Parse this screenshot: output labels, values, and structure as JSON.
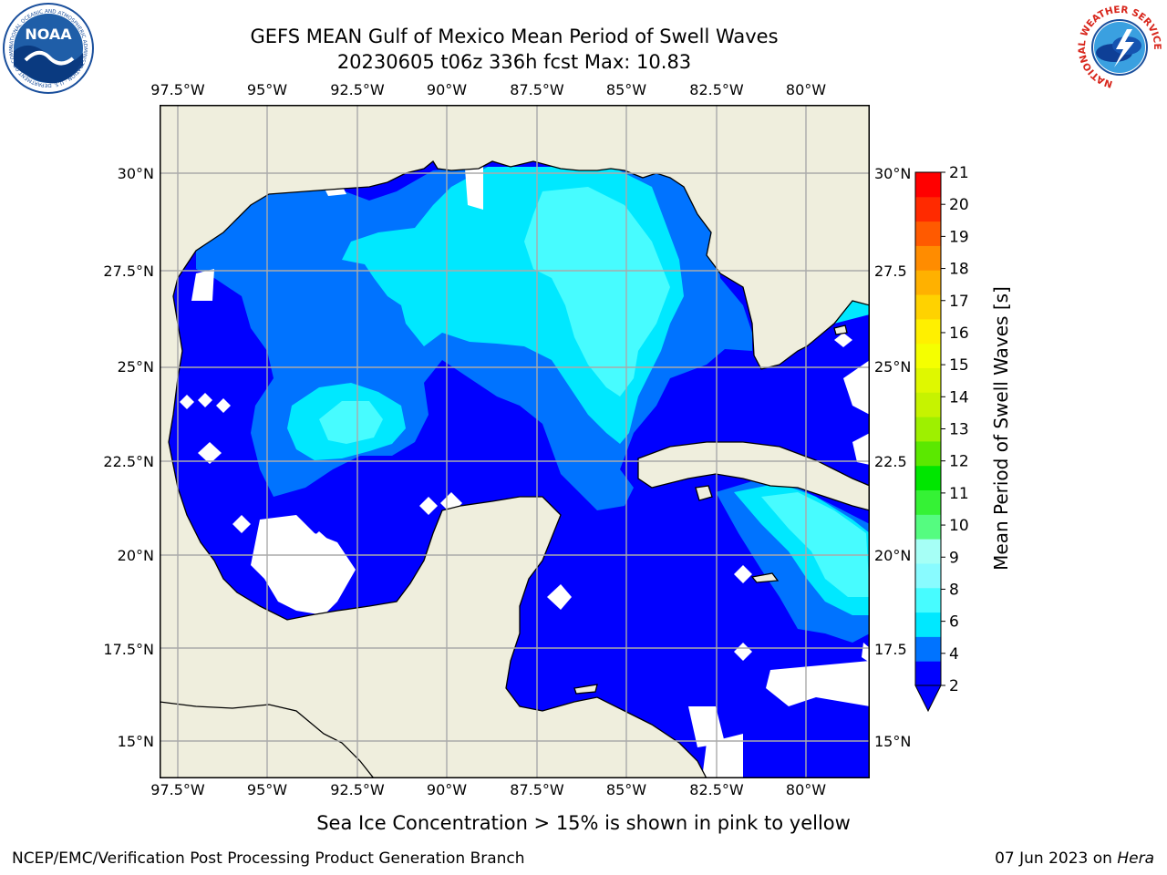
{
  "header": {
    "title_line1": "GEFS MEAN Gulf of Mexico Mean Period of Swell Waves",
    "title_line2": "20230605 t06z 336h fcst   Max: 10.83"
  },
  "logos": {
    "noaa": "NOAA",
    "noaa_ring": "NATIONAL OCEANIC AND ATMOSPHERIC ADMINISTRATION · U.S. DEPARTMENT OF COMMERCE",
    "nws_ring": "NATIONAL WEATHER SERVICE"
  },
  "axes": {
    "lon_labels": [
      "97.5°W",
      "95°W",
      "92.5°W",
      "90°W",
      "87.5°W",
      "85°W",
      "82.5°W",
      "80°W"
    ],
    "lat_labels_left": [
      "30°N",
      "27.5°N",
      "25°N",
      "22.5°N",
      "20°N",
      "17.5°N",
      "15°N"
    ],
    "lat_labels_right": [
      "30°N",
      "27.5",
      "25°N",
      "22.5",
      "20°N",
      "17.5",
      "15°N"
    ]
  },
  "colorbar": {
    "label": "Mean Period of Swell Waves [s]",
    "ticks": [
      "21",
      "20",
      "19",
      "18",
      "17",
      "16",
      "15",
      "14",
      "13",
      "12",
      "11",
      "10",
      "9",
      "8",
      "6",
      "4",
      "2"
    ],
    "colors_bottom_to_top": [
      "#0000ff",
      "#0073ff",
      "#00e8ff",
      "#47fcff",
      "#89fbff",
      "#a6fff6",
      "#55fc80",
      "#35f235",
      "#00e600",
      "#5be800",
      "#9ef000",
      "#c6f300",
      "#dff800",
      "#f5ff00",
      "#fff000",
      "#ffd200",
      "#ffb100",
      "#ff8c00",
      "#ff5a00",
      "#ff2a00",
      "#ff0000"
    ],
    "extend_color": "#0000ff"
  },
  "map": {
    "land_color": "#efeedd",
    "ocean_low_color": "#0000ff",
    "missing_color": "#ffffff",
    "grid_color": "#aaaaaa"
  },
  "notes": {
    "sea_ice": "Sea Ice Concentration > 15% is shown in pink to yellow"
  },
  "footer": {
    "left": "NCEP/EMC/Verification Post Processing Product Generation Branch",
    "right_date": "07 Jun 2023 on ",
    "right_host": "Hera"
  }
}
